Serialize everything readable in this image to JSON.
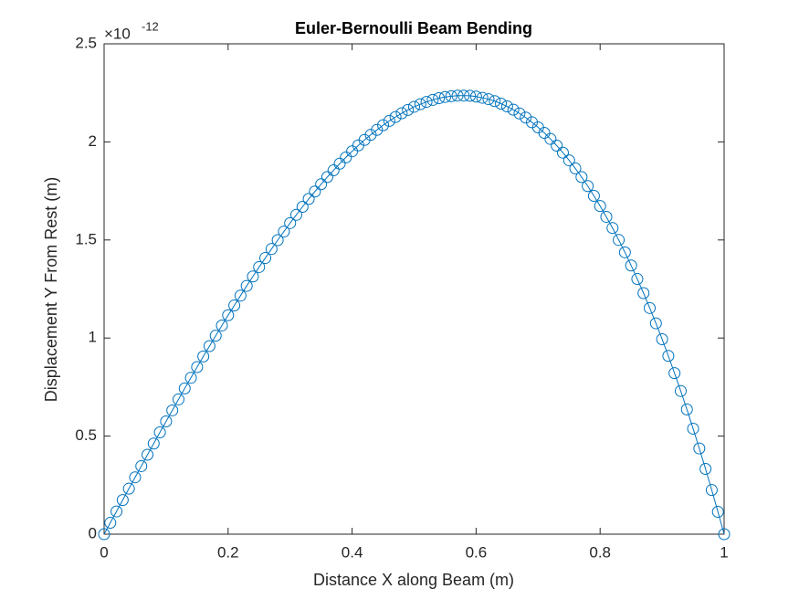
{
  "chart_data": {
    "type": "line",
    "title": "Euler-Bernoulli Beam Bending",
    "x_label": "Distance X along Beam (m)",
    "y_label": "Displacement Y From Rest (m)",
    "y_exponent_base": "×10",
    "y_exponent": "-12",
    "x": [
      0,
      0.01,
      0.02,
      0.03,
      0.04,
      0.05,
      0.06,
      0.07,
      0.08,
      0.09,
      0.1,
      0.11,
      0.12,
      0.13,
      0.14,
      0.15,
      0.16,
      0.17,
      0.18,
      0.19,
      0.2,
      0.21,
      0.22,
      0.23,
      0.24,
      0.25,
      0.26,
      0.27,
      0.28,
      0.29,
      0.3,
      0.31,
      0.32,
      0.33,
      0.34,
      0.35,
      0.36,
      0.37,
      0.38,
      0.39,
      0.4,
      0.41,
      0.42,
      0.43,
      0.44,
      0.45,
      0.46,
      0.47,
      0.48,
      0.49,
      0.5,
      0.51,
      0.52,
      0.53,
      0.54,
      0.55,
      0.56,
      0.57,
      0.58,
      0.59,
      0.6,
      0.61,
      0.62,
      0.63,
      0.64,
      0.65,
      0.66,
      0.67,
      0.68,
      0.69,
      0.7,
      0.71,
      0.72,
      0.73,
      0.74,
      0.75,
      0.76,
      0.77,
      0.78,
      0.79,
      0.8,
      0.81,
      0.82,
      0.83,
      0.84,
      0.85,
      0.86,
      0.87,
      0.88,
      0.89,
      0.9,
      0.91,
      0.92,
      0.93,
      0.94,
      0.95,
      0.96,
      0.97,
      0.98,
      0.99,
      1
    ],
    "series": [
      {
        "color": "#0072bd",
        "marker": "circle",
        "values": [
          0,
          0.058,
          0.116,
          0.174,
          0.232,
          0.29,
          0.347,
          0.405,
          0.462,
          0.519,
          0.575,
          0.631,
          0.687,
          0.743,
          0.797,
          0.852,
          0.906,
          0.959,
          1.012,
          1.064,
          1.116,
          1.166,
          1.216,
          1.266,
          1.314,
          1.362,
          1.408,
          1.454,
          1.499,
          1.543,
          1.586,
          1.628,
          1.669,
          1.709,
          1.747,
          1.784,
          1.821,
          1.855,
          1.889,
          1.921,
          1.952,
          1.982,
          2.01,
          2.036,
          2.061,
          2.085,
          2.107,
          2.127,
          2.146,
          2.163,
          2.179,
          2.192,
          2.204,
          2.214,
          2.223,
          2.229,
          2.233,
          2.236,
          2.236,
          2.235,
          2.231,
          2.225,
          2.218,
          2.208,
          2.195,
          2.181,
          2.164,
          2.145,
          2.124,
          2.1,
          2.074,
          2.046,
          2.015,
          1.981,
          1.945,
          1.906,
          1.865,
          1.821,
          1.775,
          1.725,
          1.673,
          1.618,
          1.561,
          1.5,
          1.437,
          1.37,
          1.301,
          1.229,
          1.153,
          1.075,
          0.994,
          0.909,
          0.821,
          0.73,
          0.636,
          0.538,
          0.437,
          0.333,
          0.225,
          0.114,
          0
        ]
      }
    ],
    "xlim": [
      0,
      1
    ],
    "xticks": [
      0,
      0.2,
      0.4,
      0.6,
      0.8,
      1
    ],
    "ylim": [
      0,
      2.5
    ],
    "yticks": [
      0,
      0.5,
      1,
      1.5,
      2,
      2.5
    ],
    "grid": false
  }
}
